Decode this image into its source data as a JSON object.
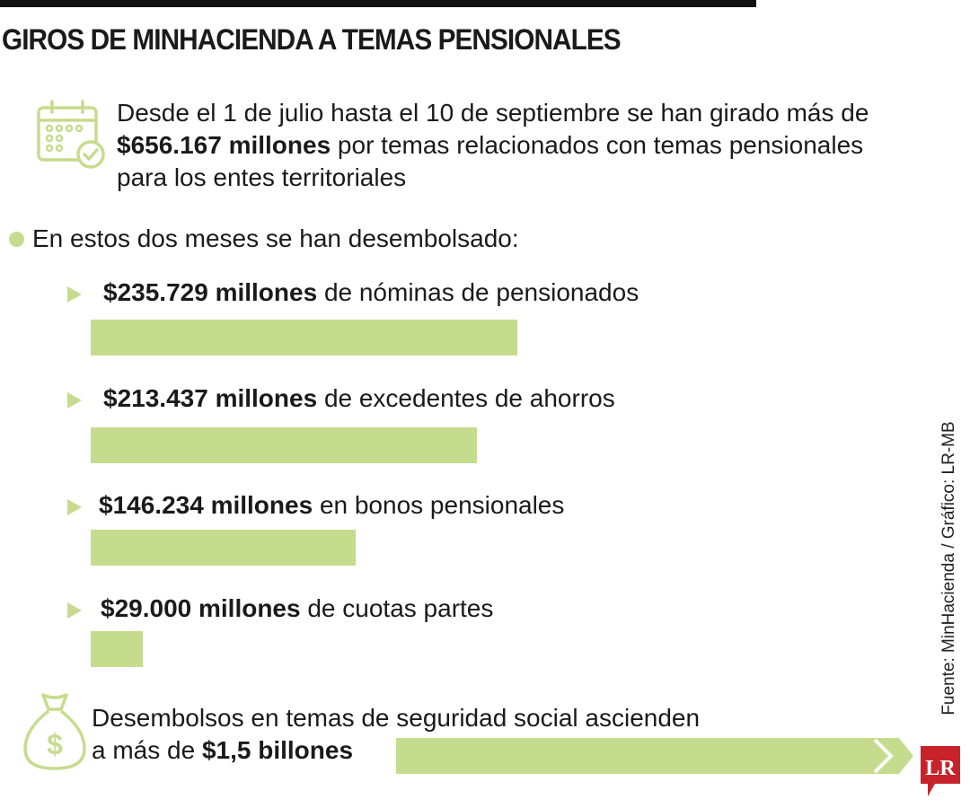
{
  "title": "GIROS DE MINHACIENDA A TEMAS PENSIONALES",
  "intro": {
    "icon": "calendar-check-icon",
    "text_before": "Desde el 1 de julio hasta el 10 de septiembre se han girado más de ",
    "highlight": "$656.167 millones",
    "text_after": " por temas relacionados con temas pensionales para los entes territoriales"
  },
  "lead": "En estos dos meses se han desembolsado:",
  "colors": {
    "accent": "#c5dc8e",
    "logo": "#c8232b",
    "text": "#1a1a1a"
  },
  "chart_data": {
    "type": "bar",
    "orientation": "horizontal",
    "unit": "millones de pesos",
    "categories": [
      "de nóminas de pensionados",
      "de excedentes de ahorros",
      "en bonos pensionales",
      "de cuotas partes"
    ],
    "values": [
      235729,
      213437,
      146234,
      29000
    ],
    "labels": [
      "$235.729 millones",
      "$213.437 millones",
      "$146.234 millones",
      "$29.000 millones"
    ],
    "grid": false
  },
  "footer": {
    "icon": "money-bag-icon",
    "line1": "Desembolsos en temas de seguridad social ascienden",
    "line2_before": "a más de ",
    "highlight": "$1,5 billones"
  },
  "source": "Fuente: MinHacienda / Gráfico: LR-MB",
  "logo": "LR"
}
